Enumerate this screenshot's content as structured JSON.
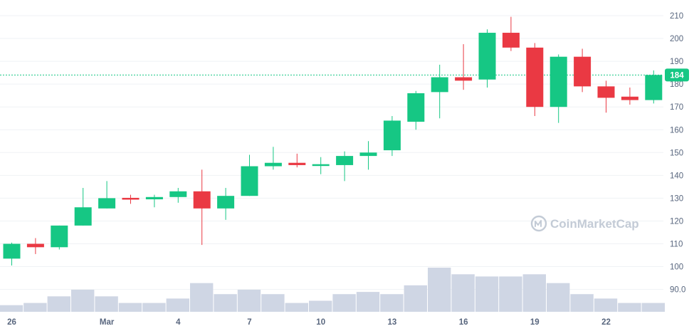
{
  "watermark": "CoinMarketCap",
  "chart_data": {
    "type": "candlestick",
    "current_price": 184,
    "current_price_label": "184",
    "ylim": [
      86,
      212
    ],
    "y_ticks": [
      {
        "value": 210,
        "label": "210"
      },
      {
        "value": 200,
        "label": "200"
      },
      {
        "value": 190,
        "label": "190"
      },
      {
        "value": 180,
        "label": "180"
      },
      {
        "value": 170,
        "label": "170"
      },
      {
        "value": 160,
        "label": "160"
      },
      {
        "value": 150,
        "label": "150"
      },
      {
        "value": 140,
        "label": "140"
      },
      {
        "value": 130,
        "label": "130"
      },
      {
        "value": 120,
        "label": "120"
      },
      {
        "value": 110,
        "label": "110"
      },
      {
        "value": 100,
        "label": "100"
      },
      {
        "value": 90,
        "label": "90.0"
      }
    ],
    "x_ticks": [
      {
        "index": 0,
        "label": "26"
      },
      {
        "index": 4,
        "label": "Mar"
      },
      {
        "index": 7,
        "label": "4"
      },
      {
        "index": 10,
        "label": "7"
      },
      {
        "index": 13,
        "label": "10"
      },
      {
        "index": 16,
        "label": "13"
      },
      {
        "index": 19,
        "label": "16"
      },
      {
        "index": 22,
        "label": "19"
      },
      {
        "index": 25,
        "label": "22"
      }
    ],
    "candles": [
      {
        "o": 103.5,
        "h": 110.5,
        "l": 100.5,
        "c": 110.0
      },
      {
        "o": 110.0,
        "h": 112.5,
        "l": 105.5,
        "c": 108.5
      },
      {
        "o": 108.5,
        "h": 118.0,
        "l": 107.5,
        "c": 118.0
      },
      {
        "o": 118.0,
        "h": 134.5,
        "l": 118.0,
        "c": 126.0
      },
      {
        "o": 125.5,
        "h": 137.5,
        "l": 125.5,
        "c": 130.0
      },
      {
        "o": 130.0,
        "h": 131.5,
        "l": 127.5,
        "c": 129.5
      },
      {
        "o": 129.5,
        "h": 131.5,
        "l": 126.0,
        "c": 130.5
      },
      {
        "o": 130.5,
        "h": 134.5,
        "l": 128.0,
        "c": 133.0
      },
      {
        "o": 133.0,
        "h": 142.5,
        "l": 109.5,
        "c": 125.5
      },
      {
        "o": 125.5,
        "h": 134.5,
        "l": 120.5,
        "c": 131.0
      },
      {
        "o": 131.0,
        "h": 149.0,
        "l": 131.0,
        "c": 144.0
      },
      {
        "o": 144.0,
        "h": 152.5,
        "l": 142.5,
        "c": 145.5
      },
      {
        "o": 145.5,
        "h": 149.5,
        "l": 143.5,
        "c": 144.5
      },
      {
        "o": 144.5,
        "h": 148.0,
        "l": 140.5,
        "c": 144.5
      },
      {
        "o": 144.5,
        "h": 150.5,
        "l": 137.5,
        "c": 148.5
      },
      {
        "o": 148.5,
        "h": 155.0,
        "l": 142.5,
        "c": 150.0
      },
      {
        "o": 151.0,
        "h": 166.0,
        "l": 148.5,
        "c": 164.0
      },
      {
        "o": 163.5,
        "h": 177.0,
        "l": 160.0,
        "c": 176.0
      },
      {
        "o": 176.5,
        "h": 188.5,
        "l": 165.0,
        "c": 183.0
      },
      {
        "o": 183.0,
        "h": 197.5,
        "l": 177.5,
        "c": 181.5
      },
      {
        "o": 182.0,
        "h": 204.0,
        "l": 178.5,
        "c": 202.5
      },
      {
        "o": 202.5,
        "h": 209.5,
        "l": 194.5,
        "c": 196.0
      },
      {
        "o": 196.0,
        "h": 198.0,
        "l": 166.0,
        "c": 170.0
      },
      {
        "o": 170.0,
        "h": 193.0,
        "l": 163.0,
        "c": 192.0
      },
      {
        "o": 192.0,
        "h": 195.5,
        "l": 176.5,
        "c": 179.0
      },
      {
        "o": 179.0,
        "h": 181.5,
        "l": 167.5,
        "c": 174.0
      },
      {
        "o": 174.5,
        "h": 178.5,
        "l": 171.0,
        "c": 173.0
      },
      {
        "o": 173.0,
        "h": 186.0,
        "l": 171.5,
        "c": 184.0
      }
    ],
    "volume": [
      3,
      4,
      7,
      10,
      7,
      4,
      4,
      6,
      13,
      8,
      10,
      8,
      4,
      5,
      8,
      9,
      8,
      12,
      20,
      17,
      16,
      16,
      17,
      13,
      8,
      6,
      4,
      4
    ],
    "colors": {
      "up": "#16c784",
      "down": "#ea3943",
      "volume": "#cfd6e4",
      "grid": "#eff2f5",
      "price_line": "#16c784",
      "axis_text": "#58667e"
    }
  }
}
